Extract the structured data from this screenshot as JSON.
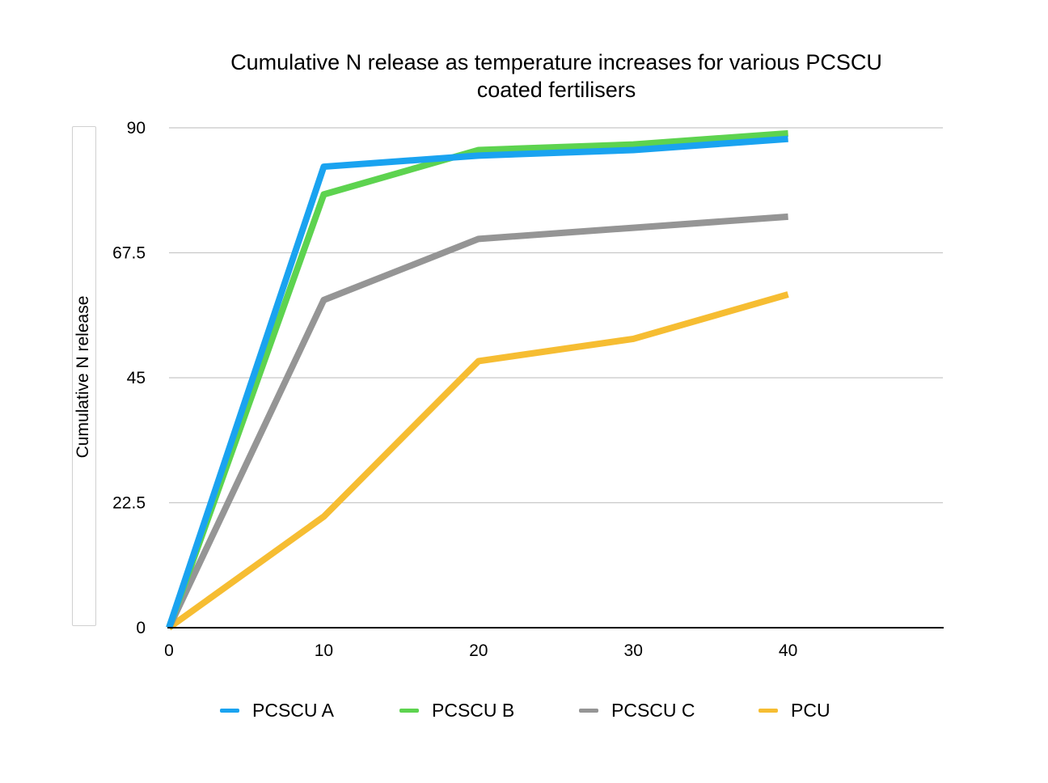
{
  "chart_data": {
    "type": "line",
    "title_lines": [
      "Cumulative N release as temperature increases for various PCSCU",
      "coated fertilisers"
    ],
    "xlabel": "",
    "ylabel": "Cumulative N release",
    "x": [
      0,
      10,
      20,
      30,
      40
    ],
    "x_ticks": [
      "0",
      "10",
      "20",
      "30",
      "40"
    ],
    "xlim": [
      0,
      50
    ],
    "y_ticks": [
      "0",
      "22.5",
      "45",
      "67.5",
      "90"
    ],
    "ylim": [
      0,
      90
    ],
    "grid": true,
    "legend_position": "bottom",
    "series": [
      {
        "name": "PCSCU A",
        "color": "#1aa3f0",
        "values": [
          0,
          83,
          85,
          86,
          88
        ]
      },
      {
        "name": "PCSCU B",
        "color": "#5dd34f",
        "values": [
          0,
          78,
          86,
          87,
          89
        ]
      },
      {
        "name": "PCSCU C",
        "color": "#959595",
        "values": [
          0,
          59,
          70,
          72,
          74
        ]
      },
      {
        "name": "PCU",
        "color": "#f6bd32",
        "values": [
          0,
          20,
          48,
          52,
          60
        ]
      }
    ]
  }
}
